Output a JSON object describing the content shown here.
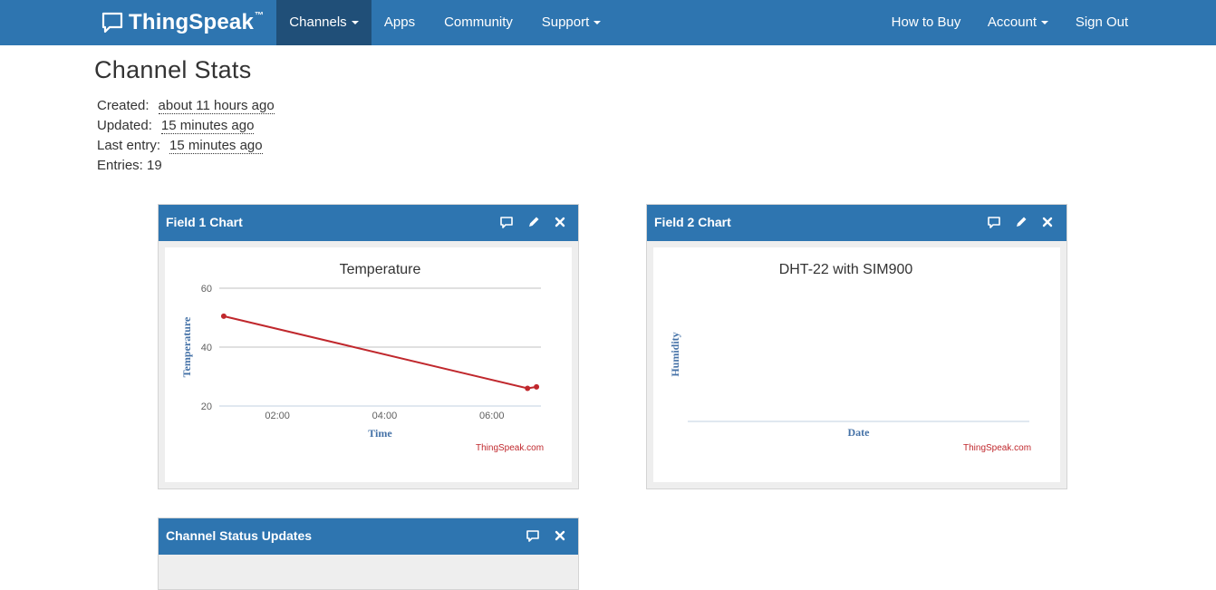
{
  "nav": {
    "brand": "ThingSpeak",
    "brand_tm": "™",
    "items": [
      {
        "label": "Channels",
        "dropdown": true,
        "active": true
      },
      {
        "label": "Apps"
      },
      {
        "label": "Community"
      },
      {
        "label": "Support",
        "dropdown": true
      }
    ],
    "right_items": [
      {
        "label": "How to Buy"
      },
      {
        "label": "Account",
        "dropdown": true
      },
      {
        "label": "Sign Out"
      }
    ]
  },
  "stats": {
    "title": "Channel Stats",
    "created_label": "Created:",
    "created_value": "about 11 hours ago",
    "updated_label": "Updated:",
    "updated_value": "15 minutes ago",
    "last_entry_label": "Last entry:",
    "last_entry_value": "15 minutes ago",
    "entries_label": "Entries:",
    "entries_value": "19"
  },
  "panels": {
    "field1": {
      "title": "Field 1 Chart",
      "icons": [
        "comment-icon",
        "pencil-icon",
        "close-icon"
      ],
      "credit": "ThingSpeak.com"
    },
    "field2": {
      "title": "Field 2 Chart",
      "icons": [
        "comment-icon",
        "pencil-icon",
        "close-icon"
      ],
      "credit": "ThingSpeak.com"
    },
    "status": {
      "title": "Channel Status Updates",
      "icons": [
        "comment-icon",
        "close-icon"
      ]
    }
  },
  "colors": {
    "navbar": "#2e75b0",
    "navbar_active": "#204f78",
    "series": "#c0282d",
    "axis_title": "#4572a7",
    "credit": "#c0282d"
  },
  "chart_data": [
    {
      "type": "line",
      "title": "Temperature",
      "xlabel": "Time",
      "ylabel": "Temperature",
      "ylim": [
        20,
        60
      ],
      "xlim": [
        "00:55",
        "06:55"
      ],
      "yticks": [
        20,
        40,
        60
      ],
      "xticks": [
        "02:00",
        "04:00",
        "06:00"
      ],
      "grid": true,
      "series": [
        {
          "points": [
            {
              "x": "01:00",
              "y": 50.5
            },
            {
              "x": "06:40",
              "y": 26
            },
            {
              "x": "06:50",
              "y": 26.5
            }
          ]
        }
      ]
    },
    {
      "type": "line",
      "title": "DHT-22 with SIM900",
      "xlabel": "Date",
      "ylabel": "Humidity",
      "grid": false,
      "series": []
    }
  ]
}
